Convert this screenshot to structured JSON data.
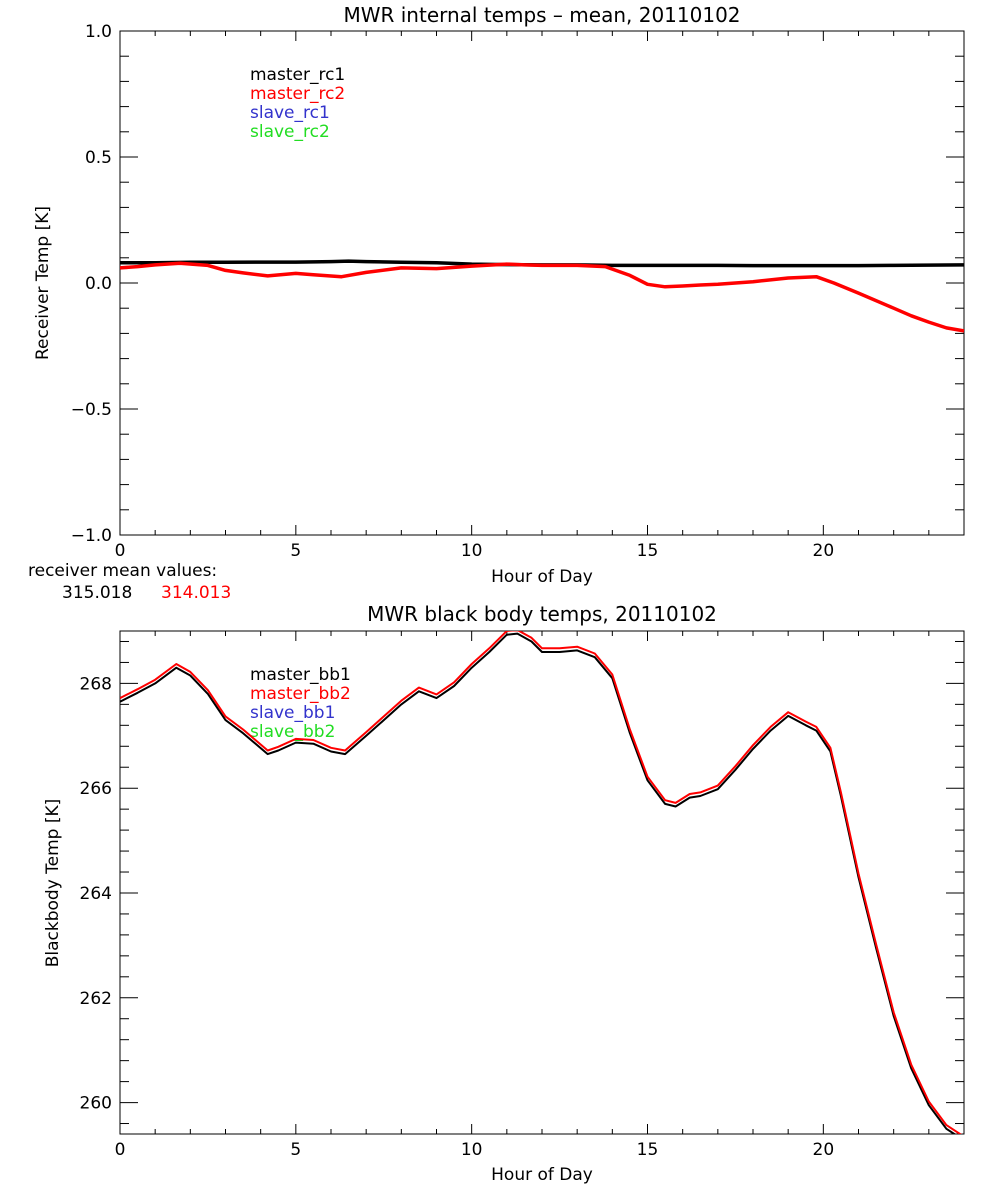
{
  "colors": {
    "master_rc1": "#000000",
    "master_rc2": "#ff0000",
    "slave_rc1": "#3333cc",
    "slave_rc2": "#22dd22",
    "axis": "#000000"
  },
  "chart_data": [
    {
      "type": "line",
      "title": "MWR internal temps – mean, 20110102",
      "xlabel": "Hour of Day",
      "ylabel": "Receiver Temp [K]",
      "xlim": [
        0,
        24
      ],
      "ylim": [
        -1.0,
        1.0
      ],
      "xticks": [
        0,
        5,
        10,
        15,
        20
      ],
      "yticks": [
        -1.0,
        -0.5,
        0.0,
        0.5,
        1.0
      ],
      "ytick_labels": [
        "−1.0",
        "−0.5",
        "0.0",
        "0.5",
        "1.0"
      ],
      "legend": [
        "master_rc1",
        "master_rc2",
        "slave_rc1",
        "slave_rc2"
      ],
      "legend_placement": "top-left",
      "series": [
        {
          "name": "master_rc1",
          "color_key": "master_rc1",
          "x": [
            0,
            1,
            2,
            3,
            4,
            5,
            6,
            6.5,
            7,
            8,
            9,
            10,
            11,
            12,
            13,
            14,
            15,
            16,
            17,
            18,
            19,
            20,
            21,
            22,
            23,
            24
          ],
          "y": [
            0.08,
            0.08,
            0.082,
            0.082,
            0.083,
            0.083,
            0.085,
            0.087,
            0.085,
            0.082,
            0.08,
            0.075,
            0.073,
            0.072,
            0.072,
            0.07,
            0.07,
            0.07,
            0.07,
            0.069,
            0.069,
            0.069,
            0.069,
            0.07,
            0.071,
            0.072
          ]
        },
        {
          "name": "master_rc2",
          "color_key": "master_rc2",
          "x": [
            0,
            0.5,
            1,
            1.7,
            2.5,
            3,
            3.5,
            4.2,
            5,
            5.5,
            6.3,
            7,
            8,
            9,
            10,
            11,
            11.5,
            12,
            13,
            13.8,
            14.5,
            15,
            15.5,
            16,
            16.5,
            17,
            18,
            19,
            19.8,
            20.3,
            21,
            22,
            22.5,
            23,
            23.5,
            24
          ],
          "y": [
            0.06,
            0.065,
            0.072,
            0.078,
            0.07,
            0.05,
            0.04,
            0.028,
            0.038,
            0.033,
            0.025,
            0.042,
            0.06,
            0.057,
            0.067,
            0.075,
            0.072,
            0.07,
            0.07,
            0.065,
            0.03,
            -0.005,
            -0.015,
            -0.012,
            -0.008,
            -0.005,
            0.005,
            0.02,
            0.025,
            0.0,
            -0.04,
            -0.1,
            -0.13,
            -0.155,
            -0.178,
            -0.19
          ]
        }
      ]
    },
    {
      "type": "line",
      "title": "MWR black body temps, 20110102",
      "xlabel": "Hour of Day",
      "ylabel": "Blackbody Temp [K]",
      "xlim": [
        0,
        24
      ],
      "ylim": [
        259.4,
        269.0
      ],
      "xticks": [
        0,
        5,
        10,
        15,
        20
      ],
      "yticks": [
        260,
        262,
        264,
        266,
        268
      ],
      "ytick_labels": [
        "260",
        "262",
        "264",
        "266",
        "268"
      ],
      "legend": [
        "master_bb1",
        "master_bb2",
        "slave_bb1",
        "slave_bb2"
      ],
      "legend_placement": "top-left",
      "series": [
        {
          "name": "master_bb1",
          "color_key": "master_rc1",
          "x": [
            0,
            0.5,
            1,
            1.6,
            2,
            2.5,
            3,
            3.5,
            4.2,
            4.5,
            5,
            5.5,
            6,
            6.4,
            7,
            7.5,
            8,
            8.5,
            9,
            9.5,
            10,
            10.5,
            11,
            11.3,
            11.7,
            12,
            12.5,
            13,
            13.5,
            14,
            14.5,
            15,
            15.5,
            15.8,
            16.2,
            16.5,
            17,
            17.5,
            18,
            18.5,
            19,
            19.5,
            19.8,
            20.2,
            20.5,
            21,
            21.5,
            22,
            22.5,
            23,
            23.5,
            24
          ],
          "y": [
            267.65,
            267.82,
            268.0,
            268.3,
            268.15,
            267.8,
            267.3,
            267.05,
            266.65,
            266.72,
            266.87,
            266.85,
            266.7,
            266.65,
            267.0,
            267.3,
            267.6,
            267.85,
            267.72,
            267.95,
            268.3,
            268.6,
            268.93,
            268.95,
            268.8,
            268.6,
            268.6,
            268.63,
            268.5,
            268.1,
            267.05,
            266.15,
            265.7,
            265.65,
            265.82,
            265.85,
            265.98,
            266.35,
            266.75,
            267.1,
            267.38,
            267.2,
            267.1,
            266.7,
            265.85,
            264.3,
            262.95,
            261.65,
            260.65,
            259.95,
            259.5,
            259.28
          ]
        },
        {
          "name": "master_bb2",
          "color_key": "master_rc2",
          "x": [
            0,
            0.5,
            1,
            1.6,
            2,
            2.5,
            3,
            3.5,
            4.2,
            4.5,
            5,
            5.5,
            6,
            6.4,
            7,
            7.5,
            8,
            8.5,
            9,
            9.5,
            10,
            10.5,
            11,
            11.3,
            11.7,
            12,
            12.5,
            13,
            13.5,
            14,
            14.5,
            15,
            15.5,
            15.8,
            16.2,
            16.5,
            17,
            17.5,
            18,
            18.5,
            19,
            19.5,
            19.8,
            20.2,
            20.5,
            21,
            21.5,
            22,
            22.5,
            23,
            23.5,
            24
          ],
          "y": [
            267.72,
            267.89,
            268.07,
            268.37,
            268.22,
            267.87,
            267.37,
            267.12,
            266.72,
            266.79,
            266.94,
            266.92,
            266.77,
            266.72,
            267.07,
            267.37,
            267.67,
            267.92,
            267.79,
            268.02,
            268.37,
            268.67,
            269.0,
            269.02,
            268.87,
            268.67,
            268.67,
            268.7,
            268.57,
            268.17,
            267.12,
            266.22,
            265.77,
            265.72,
            265.89,
            265.92,
            266.05,
            266.42,
            266.82,
            267.17,
            267.45,
            267.27,
            267.17,
            266.77,
            265.92,
            264.37,
            263.02,
            261.72,
            260.72,
            260.02,
            259.57,
            259.35
          ]
        }
      ]
    }
  ],
  "receiver_means": {
    "label": "receiver mean values:",
    "rc1": "315.018",
    "rc2": "314.013"
  }
}
